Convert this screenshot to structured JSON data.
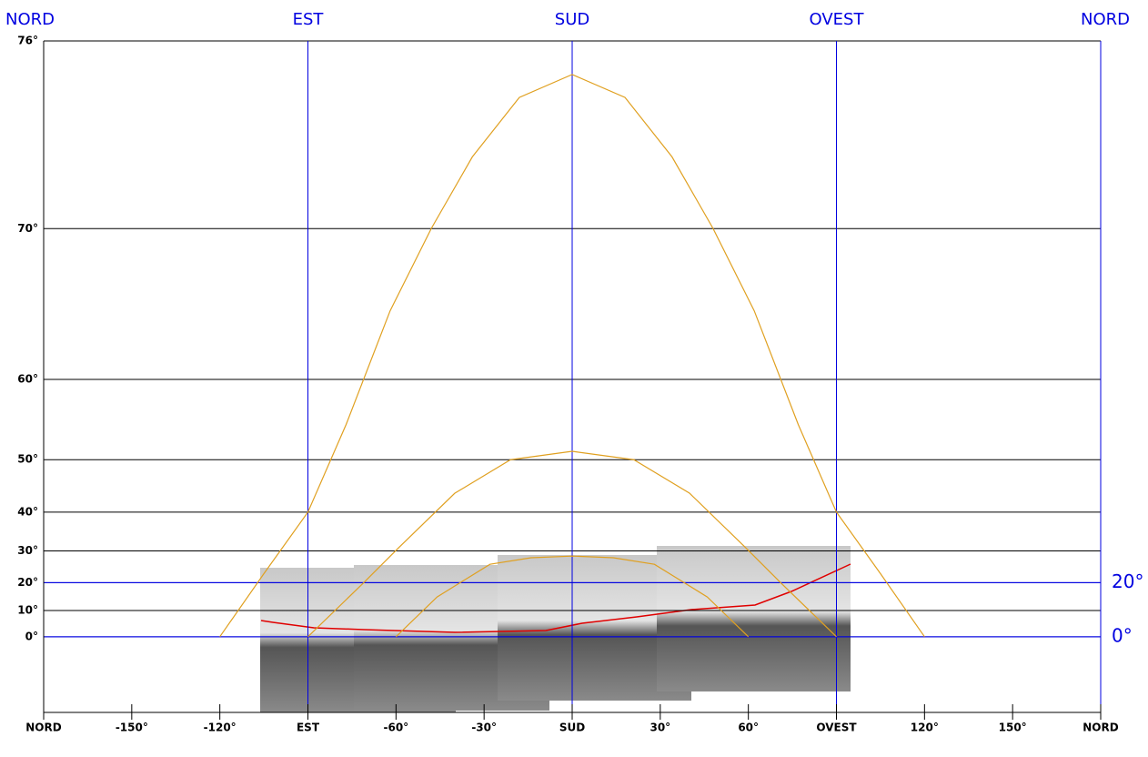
{
  "chart_data": {
    "type": "sunpath",
    "xlim": [
      -180,
      180
    ],
    "ylim": [
      -27,
      76
    ],
    "yscale": "tan",
    "xticks": [
      {
        "value": -180,
        "label": "NORD"
      },
      {
        "value": -150,
        "label": "-150°"
      },
      {
        "value": -120,
        "label": "-120°"
      },
      {
        "value": -90,
        "label": "EST"
      },
      {
        "value": -60,
        "label": "-60°"
      },
      {
        "value": -30,
        "label": "-30°"
      },
      {
        "value": 0,
        "label": "SUD"
      },
      {
        "value": 30,
        "label": "30°"
      },
      {
        "value": 60,
        "label": "60°"
      },
      {
        "value": 90,
        "label": "OVEST"
      },
      {
        "value": 120,
        "label": "120°"
      },
      {
        "value": 150,
        "label": "150°"
      },
      {
        "value": 180,
        "label": "NORD"
      }
    ],
    "top_labels": [
      {
        "value": -180,
        "label": "NORD"
      },
      {
        "value": -90,
        "label": "EST"
      },
      {
        "value": 0,
        "label": "SUD"
      },
      {
        "value": 90,
        "label": "OVEST"
      },
      {
        "value": 180,
        "label": "NORD"
      }
    ],
    "yticks": [
      {
        "value": 0,
        "label": "0°"
      },
      {
        "value": 10,
        "label": "10°"
      },
      {
        "value": 20,
        "label": "20°"
      },
      {
        "value": 30,
        "label": "30°"
      },
      {
        "value": 40,
        "label": "40°"
      },
      {
        "value": 50,
        "label": "50°"
      },
      {
        "value": 60,
        "label": "60°"
      },
      {
        "value": 70,
        "label": "70°"
      },
      {
        "value": 76,
        "label": "76°"
      }
    ],
    "reference_lines": [
      {
        "value": 20,
        "label": "20°"
      },
      {
        "value": 0,
        "label": "0°"
      }
    ],
    "line_color": "#0000e0",
    "grid": true,
    "series": [
      {
        "color": "#e0a020",
        "x": [
          -120,
          -105,
          -90,
          -77,
          -62,
          -48,
          -34,
          -18,
          0,
          18,
          34,
          48,
          62,
          77,
          90,
          105,
          120
        ],
        "values": [
          0,
          23,
          40,
          55,
          65.5,
          70,
          72.8,
          74.6,
          75.2,
          74.6,
          72.8,
          70,
          65.5,
          55,
          40,
          23,
          0
        ]
      },
      {
        "color": "#e0a020",
        "x": [
          -90,
          -71,
          -59,
          -40,
          -21,
          0,
          21,
          40,
          59,
          71,
          90
        ],
        "values": [
          0,
          20,
          31,
          44,
          50,
          51.3,
          50,
          44,
          31,
          20,
          0
        ]
      },
      {
        "color": "#e0a020",
        "x": [
          -60,
          -46,
          -28,
          -14,
          0,
          14,
          28,
          46,
          60
        ],
        "values": [
          0,
          15,
          26,
          28,
          28.5,
          28,
          26,
          15,
          0
        ]
      }
    ]
  }
}
